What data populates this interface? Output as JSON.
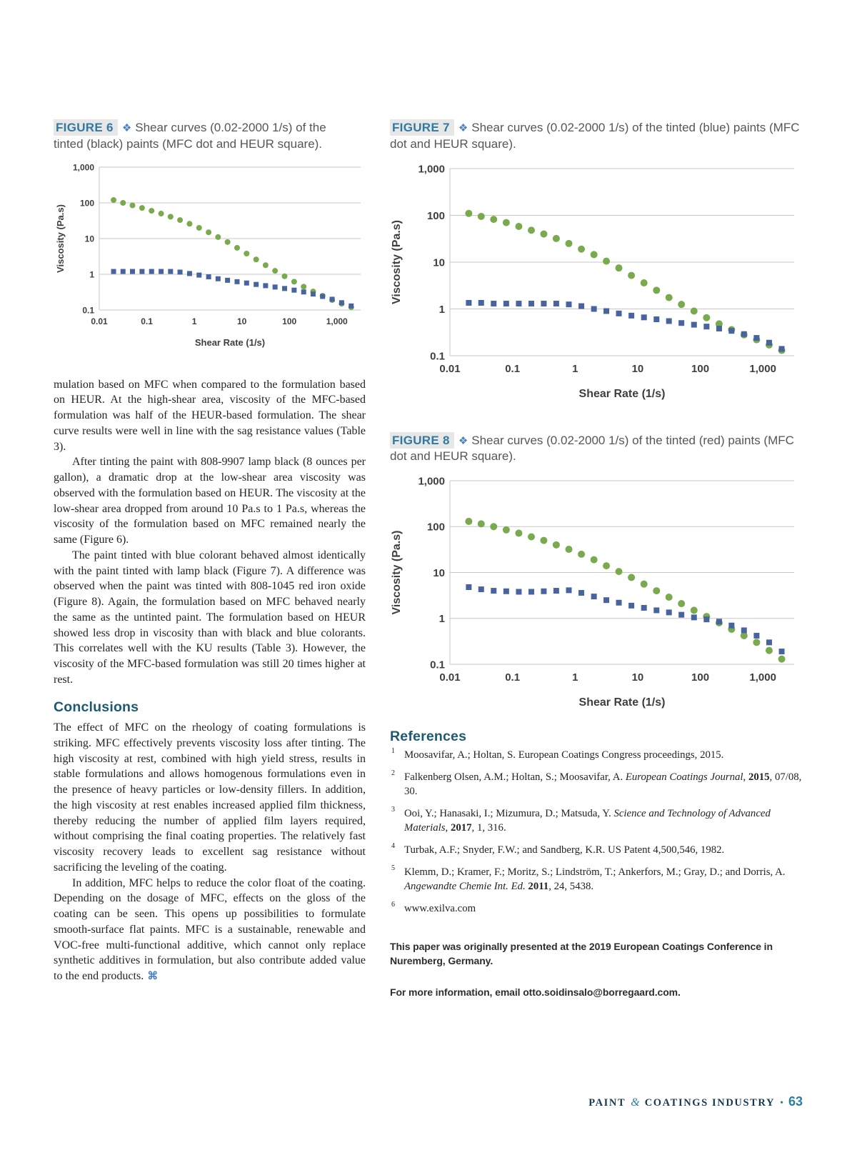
{
  "figures": [
    {
      "label": "FIGURE 6",
      "marker": "❖",
      "caption": "Shear curves (0.02-2000 1/s) of the tinted (black) paints (MFC dot and HEUR square)."
    },
    {
      "label": "FIGURE 7",
      "marker": "❖",
      "caption": "Shear curves (0.02-2000 1/s) of the tinted (blue) paints (MFC dot and HEUR square)."
    },
    {
      "label": "FIGURE 8",
      "marker": "❖",
      "caption": "Shear curves (0.02-2000 1/s) of the tinted (red) paints (MFC dot and HEUR square)."
    }
  ],
  "article": {
    "p1": "mulation based on MFC when compared to the formulation based on HEUR. At the high-shear area, viscosity of the MFC-based formulation was half of the HEUR-based formulation. The shear curve results were well in line with the sag resistance values (Table 3).",
    "p2": "After tinting the paint with 808-9907 lamp black (8 ounces per gallon), a dramatic drop at the low-shear area viscosity was observed with the formulation based on HEUR. The viscosity at the low-shear area dropped from around 10 Pa.s to 1 Pa.s, whereas the viscosity of the formulation based on MFC remained nearly the same (Figure 6).",
    "p3": "The paint tinted with blue colorant behaved almost identically with the paint tinted with lamp black (Figure 7). A difference was observed when the paint was tinted with 808-1045 red iron oxide (Figure 8). Again, the formulation based on MFC behaved nearly the same as the untinted paint. The formulation based on HEUR showed less drop in viscosity than with black and blue colorants. This correlates well with the KU results (Table 3). However, the viscosity of the MFC-based formulation was still 20 times higher at rest.",
    "conclusions_heading": "Conclusions",
    "c1": "The effect of MFC on the rheology of coating formulations is striking. MFC effectively prevents viscosity loss after tinting. The high viscosity at rest, combined with high yield stress, results in stable formulations and allows homogenous formulations even in the presence of heavy particles or low-density fillers. In addition, the high viscosity at rest enables increased applied film thickness, thereby reducing the number of applied film layers required, without comprising the final coating properties. The relatively fast viscosity recovery leads to excellent sag resistance without sacrificing the leveling of the coating.",
    "c2": "In addition, MFC helps to reduce the color float of the coating. Depending on the dosage of MFC, effects on the gloss of the coating can be seen. This opens up possibilities to formulate smooth-surface flat paints. MFC is a sustainable, renewable and VOC-free multi-functional additive, which cannot only replace synthetic additives in formulation, but also contribute added value to the end products.",
    "end_mark": "⌘"
  },
  "references": {
    "heading": "References",
    "items": [
      {
        "num": "1",
        "segments": [
          {
            "text": "Moosavifar, A.; Holtan, S. European Coatings Congress proceedings, 2015."
          }
        ]
      },
      {
        "num": "2",
        "segments": [
          {
            "text": "Falkenberg Olsen, A.M.; Holtan, S.; Moosavifar, A. "
          },
          {
            "text": "European Coatings Journal",
            "em": true
          },
          {
            "text": ", "
          },
          {
            "text": "2015",
            "strong": true
          },
          {
            "text": ", 07/08, 30."
          }
        ]
      },
      {
        "num": "3",
        "segments": [
          {
            "text": "Ooi, Y.; Hanasaki, I.; Mizumura, D.; Matsuda, Y. "
          },
          {
            "text": "Science and Technology of Advanced Materials",
            "em": true
          },
          {
            "text": ", "
          },
          {
            "text": "2017",
            "strong": true
          },
          {
            "text": ", 1, 316."
          }
        ]
      },
      {
        "num": "4",
        "segments": [
          {
            "text": "Turbak, A.F.; Snyder, F.W.; and Sandberg, K.R. US Patent 4,500,546, 1982."
          }
        ]
      },
      {
        "num": "5",
        "segments": [
          {
            "text": "Klemm, D.; Kramer, F.; Moritz, S.; Lindström, T.; Ankerfors, M.; Gray, D.; and Dorris, A. "
          },
          {
            "text": "Angewandte Chemie Int. Ed.",
            "em": true
          },
          {
            "text": " "
          },
          {
            "text": "2011",
            "strong": true
          },
          {
            "text": ", 24, 5438."
          }
        ]
      },
      {
        "num": "6",
        "segments": [
          {
            "text": "www.exilva.com"
          }
        ]
      }
    ]
  },
  "notes": {
    "line1": "This paper was originally presented at the 2019 European Coatings Conference in Nuremberg, Germany.",
    "line2": "For more information, email otto.soidinsalo@borregaard.com."
  },
  "footer": {
    "brand_1": "PAINT",
    "amp": "&",
    "brand_2": "COATINGS INDUSTRY",
    "bullet": "•",
    "page_number": "63"
  },
  "chart_data": [
    {
      "type": "scatter",
      "title": "Shear curves (0.02-2000 1/s) of the tinted (black) paints",
      "xlabel": "Shear Rate (1/s)",
      "ylabel": "Viscosity (Pa.s)",
      "xscale": "log",
      "yscale": "log",
      "xlim": [
        0.01,
        3162
      ],
      "ylim": [
        0.1,
        1000
      ],
      "grid": "horizontal",
      "legend": "none",
      "xticks": [
        {
          "v": 0.01,
          "label": "0.01"
        },
        {
          "v": 0.1,
          "label": "0.1"
        },
        {
          "v": 1,
          "label": "1"
        },
        {
          "v": 10,
          "label": "10"
        },
        {
          "v": 100,
          "label": "100"
        },
        {
          "v": 1000,
          "label": "1,000"
        }
      ],
      "yticks": [
        {
          "v": 0.1,
          "label": "0.1"
        },
        {
          "v": 1,
          "label": "1"
        },
        {
          "v": 10,
          "label": "10"
        },
        {
          "v": 100,
          "label": "100"
        },
        {
          "v": 1000,
          "label": "1,000"
        }
      ],
      "x": [
        0.02,
        0.0316,
        0.05,
        0.0794,
        0.126,
        0.2,
        0.316,
        0.5,
        0.794,
        1.26,
        2,
        3.16,
        5,
        7.94,
        12.6,
        20,
        31.6,
        50,
        79.4,
        126,
        200,
        316,
        500,
        794,
        1260,
        2000
      ],
      "series": [
        {
          "name": "MFC",
          "marker": "circle",
          "color": "#7aaa4e",
          "y": [
            120,
            100,
            85,
            72,
            60,
            50,
            41,
            33,
            26,
            20,
            15,
            11,
            8,
            5.5,
            3.8,
            2.6,
            1.8,
            1.25,
            0.88,
            0.62,
            0.45,
            0.33,
            0.25,
            0.19,
            0.15,
            0.12
          ]
        },
        {
          "name": "HEUR",
          "marker": "square",
          "color": "#48649e",
          "y": [
            1.2,
            1.2,
            1.2,
            1.2,
            1.2,
            1.2,
            1.2,
            1.15,
            1.05,
            0.95,
            0.85,
            0.75,
            0.68,
            0.62,
            0.57,
            0.52,
            0.48,
            0.44,
            0.4,
            0.36,
            0.32,
            0.28,
            0.24,
            0.2,
            0.16,
            0.13
          ]
        }
      ]
    },
    {
      "type": "scatter",
      "title": "Shear curves (0.02-2000 1/s) of the tinted (blue) paints",
      "xlabel": "Shear Rate (1/s)",
      "ylabel": "Viscosity (Pa.s)",
      "xscale": "log",
      "yscale": "log",
      "xlim": [
        0.01,
        3162
      ],
      "ylim": [
        0.1,
        1000
      ],
      "grid": "horizontal",
      "legend": "none",
      "xticks": [
        {
          "v": 0.01,
          "label": "0.01"
        },
        {
          "v": 0.1,
          "label": "0.1"
        },
        {
          "v": 1,
          "label": "1"
        },
        {
          "v": 10,
          "label": "10"
        },
        {
          "v": 100,
          "label": "100"
        },
        {
          "v": 1000,
          "label": "1,000"
        }
      ],
      "yticks": [
        {
          "v": 0.1,
          "label": "0.1"
        },
        {
          "v": 1,
          "label": "1"
        },
        {
          "v": 10,
          "label": "10"
        },
        {
          "v": 100,
          "label": "100"
        },
        {
          "v": 1000,
          "label": "1,000"
        }
      ],
      "x": [
        0.02,
        0.0316,
        0.05,
        0.0794,
        0.126,
        0.2,
        0.316,
        0.5,
        0.794,
        1.26,
        2,
        3.16,
        5,
        7.94,
        12.6,
        20,
        31.6,
        50,
        79.4,
        126,
        200,
        316,
        500,
        794,
        1260,
        2000
      ],
      "series": [
        {
          "name": "MFC",
          "marker": "circle",
          "color": "#7aaa4e",
          "y": [
            110,
            95,
            82,
            70,
            58,
            48,
            40,
            32,
            25,
            19,
            14.5,
            10.5,
            7.5,
            5.2,
            3.6,
            2.5,
            1.75,
            1.25,
            0.9,
            0.65,
            0.48,
            0.36,
            0.28,
            0.22,
            0.17,
            0.13
          ]
        },
        {
          "name": "HEUR",
          "marker": "square",
          "color": "#48649e",
          "y": [
            1.35,
            1.35,
            1.3,
            1.3,
            1.3,
            1.3,
            1.3,
            1.3,
            1.25,
            1.15,
            1.0,
            0.9,
            0.8,
            0.72,
            0.66,
            0.6,
            0.55,
            0.5,
            0.46,
            0.42,
            0.38,
            0.34,
            0.29,
            0.24,
            0.19,
            0.14
          ]
        }
      ]
    },
    {
      "type": "scatter",
      "title": "Shear curves (0.02-2000 1/s) of the tinted (red) paints",
      "xlabel": "Shear Rate (1/s)",
      "ylabel": "Viscosity (Pa.s)",
      "xscale": "log",
      "yscale": "log",
      "xlim": [
        0.01,
        3162
      ],
      "ylim": [
        0.1,
        1000
      ],
      "grid": "horizontal",
      "legend": "none",
      "xticks": [
        {
          "v": 0.01,
          "label": "0.01"
        },
        {
          "v": 0.1,
          "label": "0.1"
        },
        {
          "v": 1,
          "label": "1"
        },
        {
          "v": 10,
          "label": "10"
        },
        {
          "v": 100,
          "label": "100"
        },
        {
          "v": 1000,
          "label": "1,000"
        }
      ],
      "yticks": [
        {
          "v": 0.1,
          "label": "0.1"
        },
        {
          "v": 1,
          "label": "1"
        },
        {
          "v": 10,
          "label": "10"
        },
        {
          "v": 100,
          "label": "100"
        },
        {
          "v": 1000,
          "label": "1,000"
        }
      ],
      "x": [
        0.02,
        0.0316,
        0.05,
        0.0794,
        0.126,
        0.2,
        0.316,
        0.5,
        0.794,
        1.26,
        2,
        3.16,
        5,
        7.94,
        12.6,
        20,
        31.6,
        50,
        79.4,
        126,
        200,
        316,
        500,
        794,
        1260,
        2000
      ],
      "series": [
        {
          "name": "MFC",
          "marker": "circle",
          "color": "#7aaa4e",
          "y": [
            130,
            115,
            100,
            85,
            72,
            60,
            50,
            40,
            32,
            25,
            19,
            14,
            10.5,
            7.8,
            5.6,
            4.0,
            2.9,
            2.1,
            1.5,
            1.1,
            0.8,
            0.58,
            0.42,
            0.3,
            0.2,
            0.13
          ]
        },
        {
          "name": "HEUR",
          "marker": "square",
          "color": "#48649e",
          "y": [
            4.8,
            4.3,
            4.0,
            3.9,
            3.8,
            3.8,
            3.9,
            4.0,
            4.1,
            3.6,
            3.0,
            2.5,
            2.2,
            1.9,
            1.7,
            1.5,
            1.35,
            1.2,
            1.05,
            0.95,
            0.85,
            0.7,
            0.55,
            0.42,
            0.3,
            0.19
          ]
        }
      ]
    }
  ]
}
